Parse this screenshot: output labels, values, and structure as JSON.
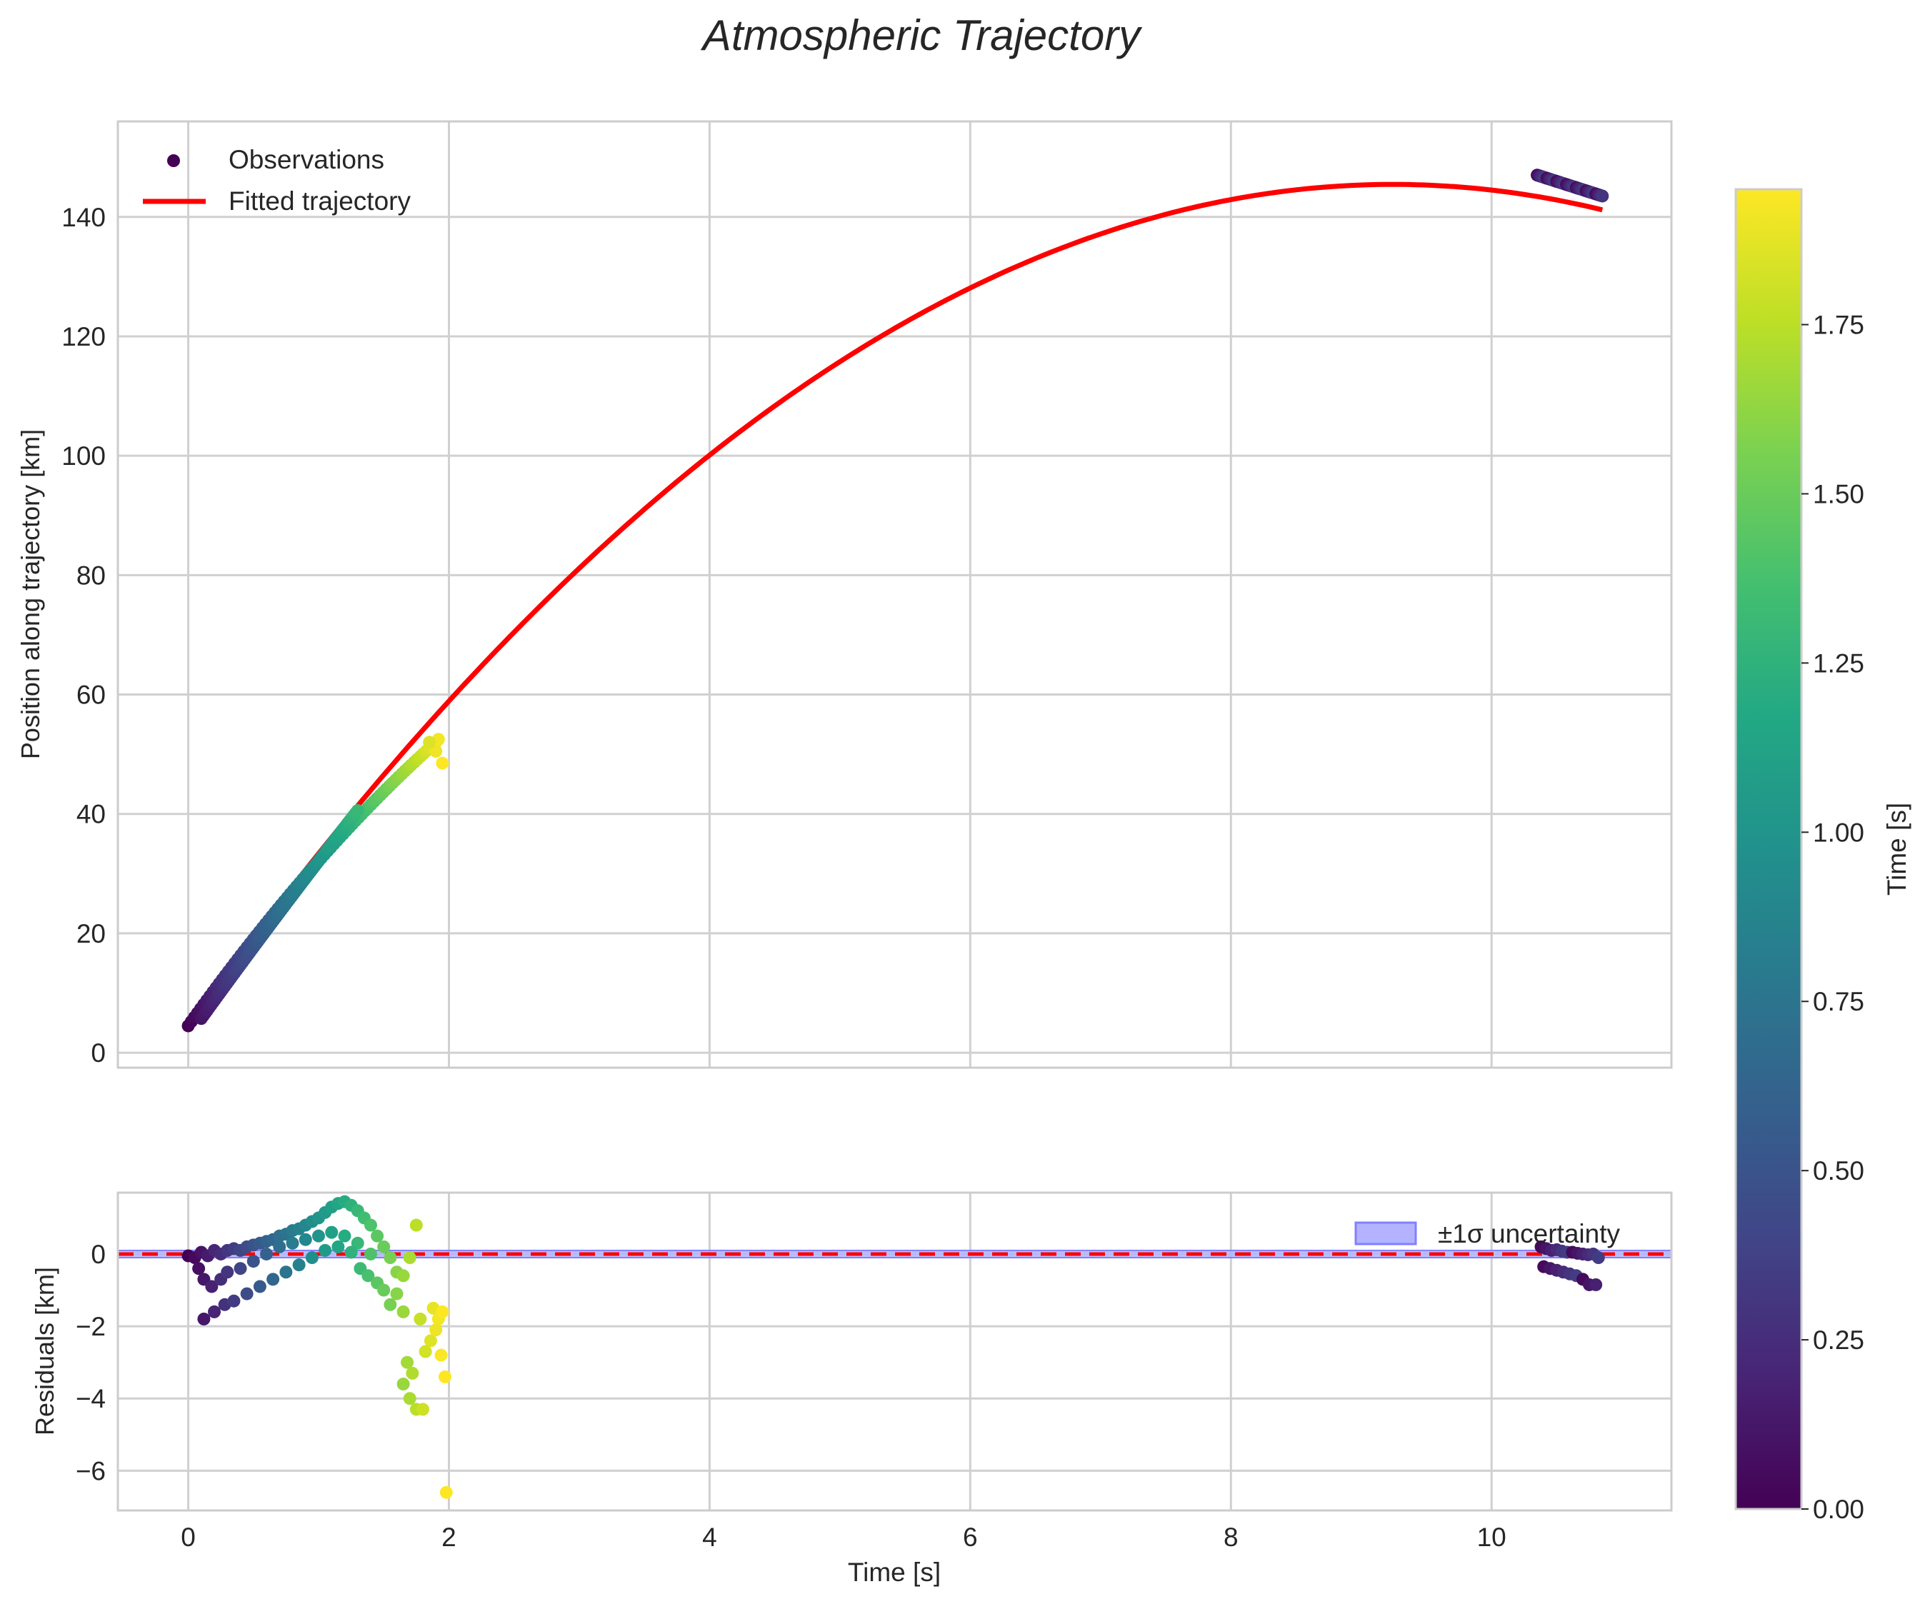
{
  "chart_data": {
    "type": "scatter",
    "title": "Atmospheric Trajectory",
    "top_panel": {
      "ylabel": "Position along trajectory [km]",
      "xlim": [
        -0.54,
        11.38
      ],
      "ylim": [
        -2.5,
        156
      ],
      "yticks": [
        0,
        20,
        40,
        60,
        80,
        100,
        120,
        140
      ],
      "grid": true,
      "legend_position": "upper-left",
      "legend": [
        {
          "label": "Observations",
          "kind": "marker"
        },
        {
          "label": "Fitted trajectory",
          "kind": "line"
        }
      ],
      "fit_model": {
        "form": "quadratic",
        "a": 4.5,
        "b": 30.5,
        "c": -1.65,
        "x_range": [
          0,
          10.85
        ]
      },
      "observations_early": {
        "x_range": [
          0,
          1.95
        ],
        "branches": [
          {
            "name": "main",
            "x_start": 0,
            "x_end": 1.9,
            "y_offset_start": 0.0,
            "y_offset_end": -4.5
          },
          {
            "name": "lower",
            "x_start": 0.1,
            "x_end": 1.3,
            "y_offset_start": -1.8,
            "y_offset_end": -0.8
          }
        ],
        "outlier_points": [
          [
            1.95,
            48.5
          ],
          [
            1.9,
            50.5
          ],
          [
            1.92,
            52.5
          ],
          [
            1.85,
            52
          ]
        ]
      },
      "observations_late": {
        "x_range": [
          10.35,
          10.85
        ],
        "y_range": [
          147,
          143.5
        ]
      }
    },
    "bottom_panel": {
      "ylabel": "Residuals [km]",
      "ylim": [
        -7.1,
        1.7
      ],
      "yticks": [
        0,
        -2,
        -4,
        -6
      ],
      "grid": true,
      "zero_line": {
        "y": 0,
        "style": "dashed",
        "color": "#ff0000"
      },
      "legend_position": "upper-right",
      "legend": [
        {
          "label": "±1σ uncertainty",
          "kind": "band"
        }
      ],
      "band_sigma": 0.1,
      "residuals_early": [
        [
          0.0,
          -0.05
        ],
        [
          0.05,
          -0.1
        ],
        [
          0.1,
          0.05
        ],
        [
          0.15,
          -0.05
        ],
        [
          0.2,
          0.1
        ],
        [
          0.25,
          0.0
        ],
        [
          0.3,
          0.1
        ],
        [
          0.35,
          0.15
        ],
        [
          0.4,
          0.1
        ],
        [
          0.45,
          0.2
        ],
        [
          0.5,
          0.25
        ],
        [
          0.55,
          0.3
        ],
        [
          0.6,
          0.35
        ],
        [
          0.65,
          0.4
        ],
        [
          0.7,
          0.5
        ],
        [
          0.75,
          0.55
        ],
        [
          0.8,
          0.65
        ],
        [
          0.85,
          0.7
        ],
        [
          0.9,
          0.8
        ],
        [
          0.95,
          0.9
        ],
        [
          1.0,
          1.0
        ],
        [
          1.05,
          1.15
        ],
        [
          1.1,
          1.3
        ],
        [
          1.15,
          1.4
        ],
        [
          1.2,
          1.45
        ],
        [
          1.25,
          1.35
        ],
        [
          1.3,
          1.2
        ],
        [
          1.35,
          1.0
        ],
        [
          1.4,
          0.8
        ],
        [
          1.45,
          0.5
        ],
        [
          1.5,
          0.2
        ],
        [
          1.55,
          -0.1
        ],
        [
          1.6,
          -0.5
        ],
        [
          1.65,
          -0.6
        ],
        [
          1.7,
          -0.1
        ],
        [
          1.75,
          0.8
        ],
        [
          0.08,
          -0.4
        ],
        [
          0.12,
          -0.7
        ],
        [
          0.18,
          -0.9
        ],
        [
          0.25,
          -0.7
        ],
        [
          0.3,
          -0.5
        ],
        [
          0.4,
          -0.4
        ],
        [
          0.5,
          -0.2
        ],
        [
          0.6,
          0.0
        ],
        [
          0.7,
          0.2
        ],
        [
          0.8,
          0.3
        ],
        [
          0.9,
          0.4
        ],
        [
          1.0,
          0.5
        ],
        [
          1.1,
          0.6
        ],
        [
          1.2,
          0.5
        ],
        [
          1.3,
          0.3
        ],
        [
          1.4,
          0.0
        ],
        [
          0.12,
          -1.8
        ],
        [
          0.2,
          -1.6
        ],
        [
          0.28,
          -1.4
        ],
        [
          0.35,
          -1.3
        ],
        [
          0.45,
          -1.1
        ],
        [
          0.55,
          -0.9
        ],
        [
          0.65,
          -0.7
        ],
        [
          0.75,
          -0.5
        ],
        [
          0.85,
          -0.3
        ],
        [
          0.95,
          -0.1
        ],
        [
          1.05,
          0.1
        ],
        [
          1.15,
          0.2
        ],
        [
          1.25,
          0.05
        ],
        [
          1.32,
          -0.4
        ],
        [
          1.38,
          -0.6
        ],
        [
          1.45,
          -0.8
        ],
        [
          1.5,
          -1.0
        ],
        [
          1.55,
          -1.4
        ],
        [
          1.6,
          -1.1
        ],
        [
          1.65,
          -1.6
        ],
        [
          1.68,
          -3.0
        ],
        [
          1.72,
          -3.3
        ],
        [
          1.65,
          -3.6
        ],
        [
          1.7,
          -4.0
        ],
        [
          1.75,
          -4.3
        ],
        [
          1.8,
          -4.3
        ],
        [
          1.78,
          -1.8
        ],
        [
          1.82,
          -2.7
        ],
        [
          1.86,
          -2.4
        ],
        [
          1.88,
          -1.5
        ],
        [
          1.9,
          -2.1
        ],
        [
          1.92,
          -1.8
        ],
        [
          1.94,
          -2.8
        ],
        [
          1.95,
          -1.6
        ],
        [
          1.97,
          -3.4
        ],
        [
          1.98,
          -6.6
        ]
      ],
      "residuals_late": [
        [
          10.38,
          0.2
        ],
        [
          10.42,
          0.15
        ],
        [
          10.46,
          0.1
        ],
        [
          10.5,
          0.12
        ],
        [
          10.54,
          0.08
        ],
        [
          10.58,
          0.05
        ],
        [
          10.62,
          0.05
        ],
        [
          10.66,
          0.02
        ],
        [
          10.7,
          0.0
        ],
        [
          10.74,
          -0.02
        ],
        [
          10.78,
          0.0
        ],
        [
          10.82,
          -0.1
        ],
        [
          10.4,
          -0.35
        ],
        [
          10.45,
          -0.4
        ],
        [
          10.5,
          -0.45
        ],
        [
          10.55,
          -0.5
        ],
        [
          10.6,
          -0.55
        ],
        [
          10.65,
          -0.6
        ],
        [
          10.7,
          -0.7
        ],
        [
          10.75,
          -0.85
        ],
        [
          10.8,
          -0.85
        ]
      ]
    },
    "xlabel": "Time [s]",
    "xticks": [
      0,
      2,
      4,
      6,
      8,
      10
    ],
    "colorbar": {
      "label": "Time [s]",
      "colormap": "viridis",
      "range": [
        0,
        1.95
      ],
      "ticks": [
        "0.00",
        "0.25",
        "0.50",
        "0.75",
        "1.00",
        "1.25",
        "1.50",
        "1.75"
      ],
      "tick_values": [
        0,
        0.25,
        0.5,
        0.75,
        1.0,
        1.25,
        1.5,
        1.75
      ]
    },
    "colors": {
      "fit": "#ff0000",
      "zero_line": "#ff0000",
      "band_fill": "#b3b3ff",
      "band_edge": "#8080ff",
      "grid": "#d0d0d0",
      "spine": "#cccccc",
      "viridis": [
        "#440154",
        "#482475",
        "#414487",
        "#355f8d",
        "#2a788e",
        "#21918c",
        "#22a884",
        "#44bf70",
        "#7ad151",
        "#bddf26",
        "#fde725"
      ]
    }
  }
}
